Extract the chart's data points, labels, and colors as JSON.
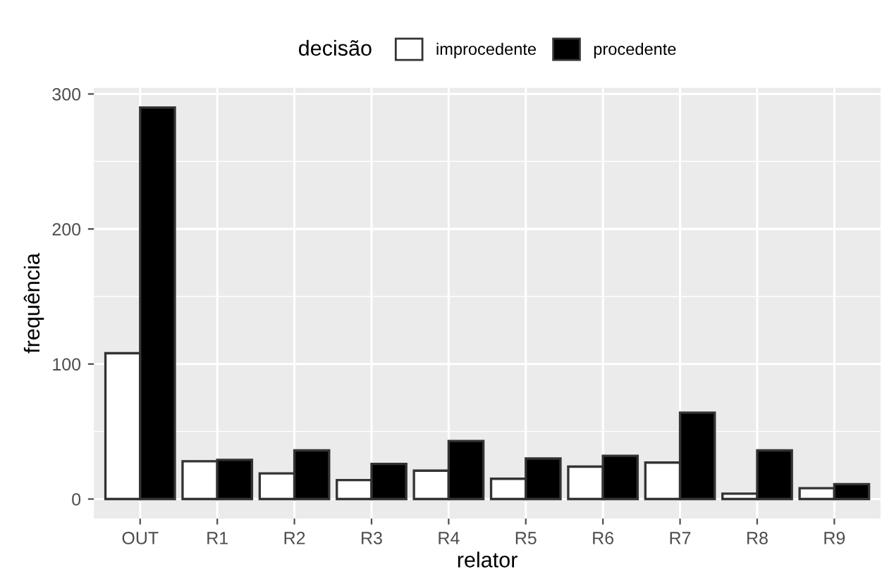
{
  "chart_data": {
    "type": "bar",
    "xlabel": "relator",
    "ylabel": "frequência",
    "legend_title": "decisão",
    "categories": [
      "OUT",
      "R1",
      "R2",
      "R3",
      "R4",
      "R5",
      "R6",
      "R7",
      "R8",
      "R9"
    ],
    "series": [
      {
        "name": "improcedente",
        "color": "#ffffff",
        "values": [
          108,
          28,
          19,
          14,
          21,
          15,
          24,
          27,
          4,
          8
        ]
      },
      {
        "name": "procedente",
        "color": "#000000",
        "values": [
          290,
          29,
          36,
          26,
          43,
          30,
          32,
          64,
          36,
          11
        ]
      }
    ],
    "ylim": [
      -14.5,
      304.5
    ],
    "yticks": [
      0,
      100,
      200,
      300
    ],
    "grid": true,
    "legend": "top"
  }
}
